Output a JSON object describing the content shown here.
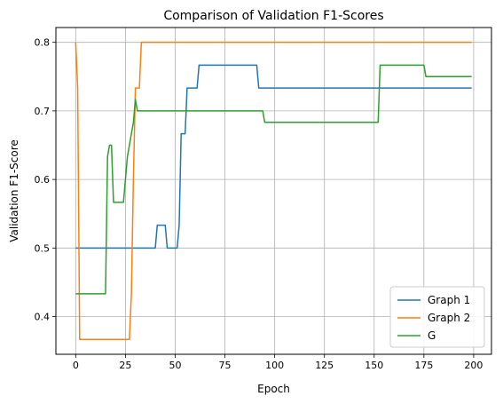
{
  "chart_data": {
    "type": "line",
    "title": "Comparison of Validation F1-Scores",
    "xlabel": "Epoch",
    "ylabel": "Validation F1-Score",
    "xlim": [
      -9.95,
      208.95
    ],
    "ylim": [
      0.345,
      0.8216
    ],
    "x_ticks": [
      0,
      25,
      50,
      75,
      100,
      125,
      150,
      175,
      200
    ],
    "y_ticks": [
      0.4,
      0.5,
      0.6,
      0.7,
      0.8
    ],
    "grid": true,
    "legend_position": "lower-right",
    "series": [
      {
        "name": "Graph 1",
        "color": "#1f77b4",
        "points": [
          [
            0,
            0.5
          ],
          [
            40,
            0.5
          ],
          [
            41,
            0.5333
          ],
          [
            45,
            0.5333
          ],
          [
            46,
            0.5
          ],
          [
            51,
            0.5
          ],
          [
            52,
            0.5333
          ],
          [
            53,
            0.6667
          ],
          [
            55,
            0.6667
          ],
          [
            56,
            0.7333
          ],
          [
            61,
            0.7333
          ],
          [
            62,
            0.7667
          ],
          [
            91,
            0.7667
          ],
          [
            92,
            0.7333
          ],
          [
            199,
            0.7333
          ]
        ]
      },
      {
        "name": "Graph 2",
        "color": "#ff7f0e",
        "points": [
          [
            0,
            0.8
          ],
          [
            1,
            0.7333
          ],
          [
            2,
            0.3667
          ],
          [
            27,
            0.3667
          ],
          [
            28,
            0.4333
          ],
          [
            29,
            0.6
          ],
          [
            30,
            0.7333
          ],
          [
            32,
            0.7333
          ],
          [
            33,
            0.8
          ],
          [
            199,
            0.8
          ]
        ]
      },
      {
        "name": "G",
        "color": "#2ca02c",
        "points": [
          [
            0,
            0.4333
          ],
          [
            15,
            0.4333
          ],
          [
            16,
            0.6333
          ],
          [
            17,
            0.65
          ],
          [
            18,
            0.65
          ],
          [
            19,
            0.5667
          ],
          [
            24,
            0.5667
          ],
          [
            25,
            0.6
          ],
          [
            26,
            0.6333
          ],
          [
            27,
            0.65
          ],
          [
            28,
            0.6667
          ],
          [
            29,
            0.6833
          ],
          [
            30,
            0.7167
          ],
          [
            31,
            0.7
          ],
          [
            94,
            0.7
          ],
          [
            95,
            0.6833
          ],
          [
            152,
            0.6833
          ],
          [
            153,
            0.7667
          ],
          [
            175,
            0.7667
          ],
          [
            176,
            0.75
          ],
          [
            199,
            0.75
          ]
        ]
      }
    ]
  }
}
